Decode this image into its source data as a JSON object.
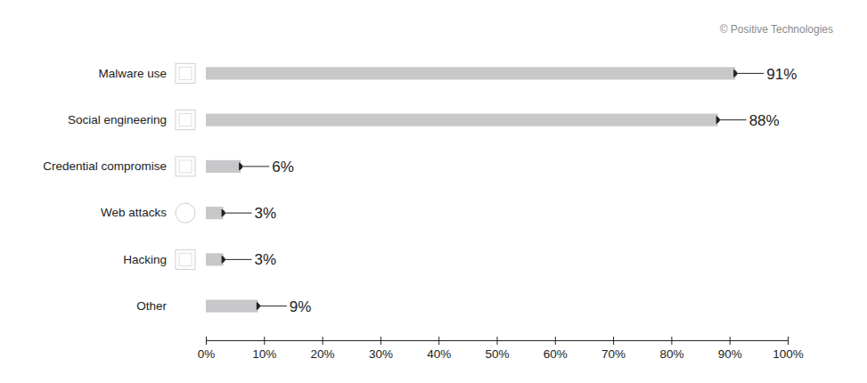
{
  "chart_data": {
    "type": "bar",
    "orientation": "horizontal",
    "annotations": [
      "© Positive Technologies"
    ],
    "categories": [
      "Malware use",
      "Social engineering",
      "Credential compromise",
      "Web attacks",
      "Hacking",
      "Other"
    ],
    "values": [
      91,
      88,
      6,
      3,
      3,
      9
    ],
    "value_labels": [
      "91%",
      "88%",
      "6%",
      "3%",
      "3%",
      "9%"
    ],
    "data_labels": true,
    "color": "#c8c7c9",
    "grid": false,
    "xlim": [
      0,
      100
    ],
    "xticks": [
      {
        "value": 0,
        "label": "0%"
      },
      {
        "value": 10,
        "label": "10%"
      },
      {
        "value": 20,
        "label": "20%"
      },
      {
        "value": 30,
        "label": "30%"
      },
      {
        "value": 40,
        "label": "40%"
      },
      {
        "value": 50,
        "label": "50%"
      },
      {
        "value": 60,
        "label": "60%"
      },
      {
        "value": 70,
        "label": "70%"
      },
      {
        "value": 80,
        "label": "80%"
      },
      {
        "value": 90,
        "label": "90%"
      },
      {
        "value": 100,
        "label": "100%"
      }
    ]
  }
}
